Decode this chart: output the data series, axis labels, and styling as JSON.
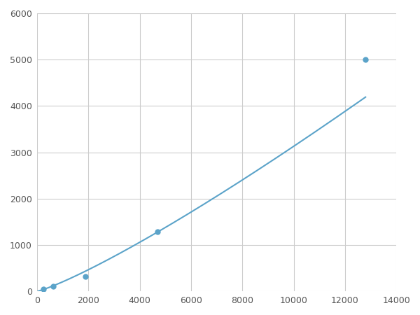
{
  "x": [
    250,
    625,
    1875,
    4688,
    12800
  ],
  "y": [
    50,
    105,
    320,
    1280,
    5000
  ],
  "line_color": "#5ba3c9",
  "marker_color": "#5ba3c9",
  "marker_size": 6,
  "xlim": [
    0,
    14000
  ],
  "ylim": [
    0,
    6000
  ],
  "xticks": [
    0,
    2000,
    4000,
    6000,
    8000,
    10000,
    12000,
    14000
  ],
  "yticks": [
    0,
    1000,
    2000,
    3000,
    4000,
    5000,
    6000
  ],
  "grid_color": "#cccccc",
  "background_color": "#ffffff",
  "figsize": [
    6.0,
    4.5
  ],
  "dpi": 100
}
